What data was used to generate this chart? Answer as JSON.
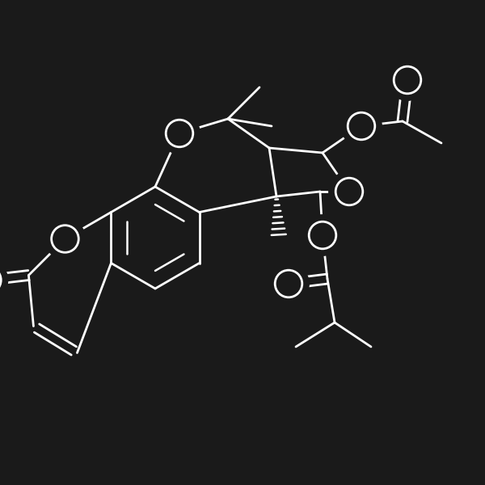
{
  "bg_color": "#1a1a1a",
  "line_color": "#ffffff",
  "line_width": 2.0,
  "figsize": [
    6.0,
    6.0
  ],
  "dpi": 100
}
